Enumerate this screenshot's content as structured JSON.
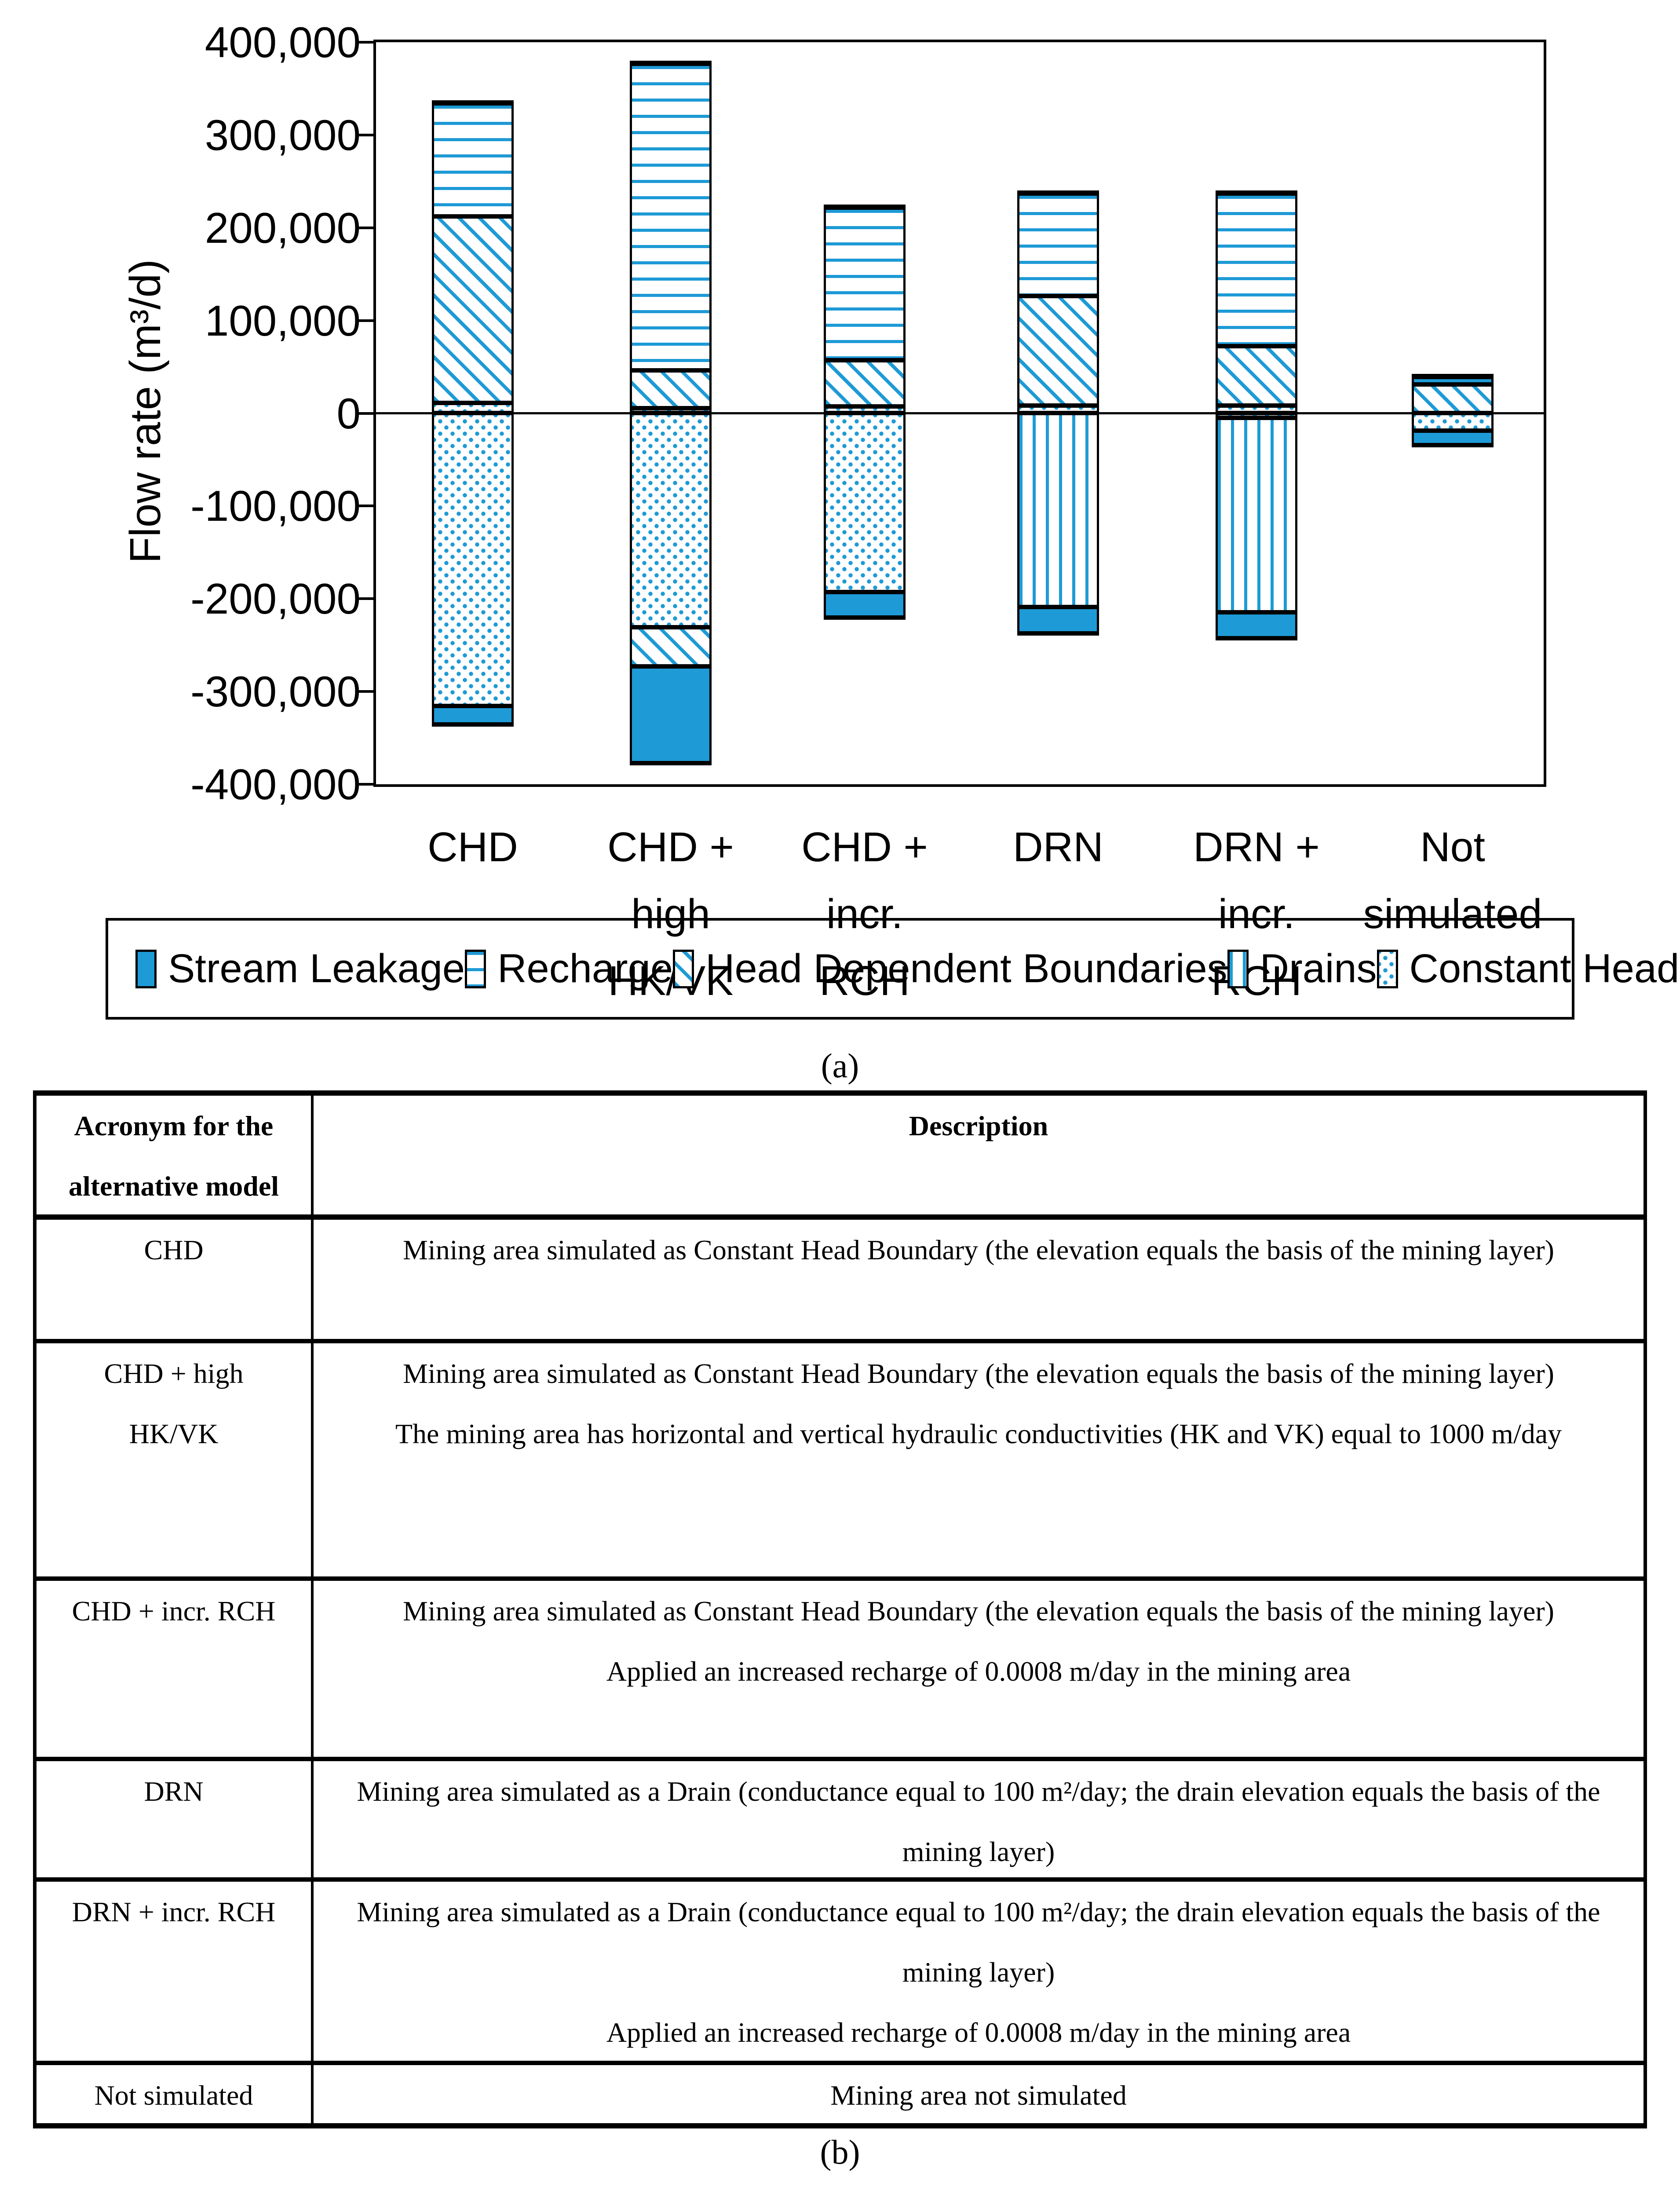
{
  "captions": {
    "a": "(a)",
    "b": "(b)"
  },
  "chart_data": {
    "type": "bar",
    "stacked": true,
    "title": "",
    "xlabel": "",
    "ylabel": "Flow rate (m³/d)",
    "unit": "m³/d",
    "ylim": [
      -400000,
      400000
    ],
    "ytick_step": 100000,
    "ytick_labels": [
      "400,000",
      "300,000",
      "200,000",
      "100,000",
      "0",
      "-100,000",
      "-200,000",
      "-300,000",
      "-400,000"
    ],
    "grid": false,
    "legend_position": "bottom",
    "accent_color": "#1E9AD6",
    "categories": [
      "CHD",
      "CHD + high HK/VK",
      "CHD + incr. RCH",
      "DRN",
      "DRN + incr. RCH",
      "Not simulated"
    ],
    "category_label_lines": [
      [
        "CHD"
      ],
      [
        "CHD + high",
        "HK/VK"
      ],
      [
        "CHD + incr.",
        "RCH"
      ],
      [
        "DRN"
      ],
      [
        "DRN + incr.",
        "RCH"
      ],
      [
        "Not",
        "simulated"
      ]
    ],
    "stack_order_from_zero": [
      "Constant Head",
      "Drains",
      "Head Dependent Boundaries",
      "Recharge",
      "Stream Leakage"
    ],
    "series": [
      {
        "name": "Stream Leakage",
        "pattern": "solid",
        "positive": [
          0,
          0,
          0,
          0,
          0,
          0
        ],
        "negative": [
          -22000,
          -107000,
          -30000,
          -31000,
          -30000,
          -18000
        ]
      },
      {
        "name": "Recharge",
        "pattern": "hlines",
        "positive": [
          125000,
          334000,
          168000,
          114000,
          168000,
          11000
        ],
        "negative": [
          0,
          0,
          0,
          0,
          0,
          0
        ]
      },
      {
        "name": "Head Dependent Boundaries",
        "pattern": "diagonal",
        "positive": [
          201000,
          41000,
          50000,
          118000,
          64000,
          31000
        ],
        "negative": [
          0,
          -42000,
          0,
          0,
          0,
          0
        ]
      },
      {
        "name": "Drains",
        "pattern": "vlines",
        "positive": [
          0,
          0,
          0,
          0,
          0,
          0
        ],
        "negative": [
          0,
          0,
          0,
          -209000,
          -210000,
          0
        ]
      },
      {
        "name": "Constant Head",
        "pattern": "dots",
        "positive": [
          11000,
          5000,
          7000,
          8000,
          8000,
          0
        ],
        "negative": [
          -316000,
          -231000,
          -193000,
          0,
          -5000,
          -19000
        ]
      }
    ]
  },
  "legend": {
    "items": [
      {
        "label": "Stream Leakage",
        "pattern": "solid"
      },
      {
        "label": "Recharge",
        "pattern": "hlines"
      },
      {
        "label": "Head Dependent Boundaries",
        "pattern": "diagonal"
      },
      {
        "label": "Drains",
        "pattern": "vlines"
      },
      {
        "label": "Constant Head",
        "pattern": "dots"
      }
    ]
  },
  "table": {
    "header": {
      "col1_lines": [
        "Acronym for the",
        "alternative model"
      ],
      "col2": "Description"
    },
    "rows": [
      {
        "acronym_lines": [
          "CHD"
        ],
        "description_paragraphs": [
          "Mining area simulated as Constant Head Boundary (the elevation equals the basis of the mining layer)"
        ]
      },
      {
        "acronym_lines": [
          "CHD + high",
          "HK/VK"
        ],
        "description_paragraphs": [
          "Mining area simulated as Constant Head Boundary (the elevation equals the basis of the mining layer)",
          "The mining area has horizontal and vertical hydraulic conductivities (HK and VK) equal to 1000 m/day"
        ]
      },
      {
        "acronym_lines": [
          "CHD + incr. RCH"
        ],
        "description_paragraphs": [
          "Mining area simulated as Constant Head Boundary (the elevation equals the basis of the mining layer)",
          "Applied an increased recharge of 0.0008 m/day in the mining area"
        ]
      },
      {
        "acronym_lines": [
          "DRN"
        ],
        "description_paragraphs": [
          "Mining area simulated as a Drain (conductance equal to 100 m²/day; the drain elevation equals the basis of the mining layer)"
        ]
      },
      {
        "acronym_lines": [
          "DRN + incr. RCH"
        ],
        "description_paragraphs": [
          "Mining area simulated as a Drain (conductance equal to 100 m²/day; the drain elevation equals the basis of the mining layer)",
          "Applied an increased recharge of 0.0008 m/day in the mining area"
        ]
      },
      {
        "acronym_lines": [
          "Not simulated"
        ],
        "description_paragraphs": [
          "Mining area not simulated"
        ]
      }
    ]
  }
}
